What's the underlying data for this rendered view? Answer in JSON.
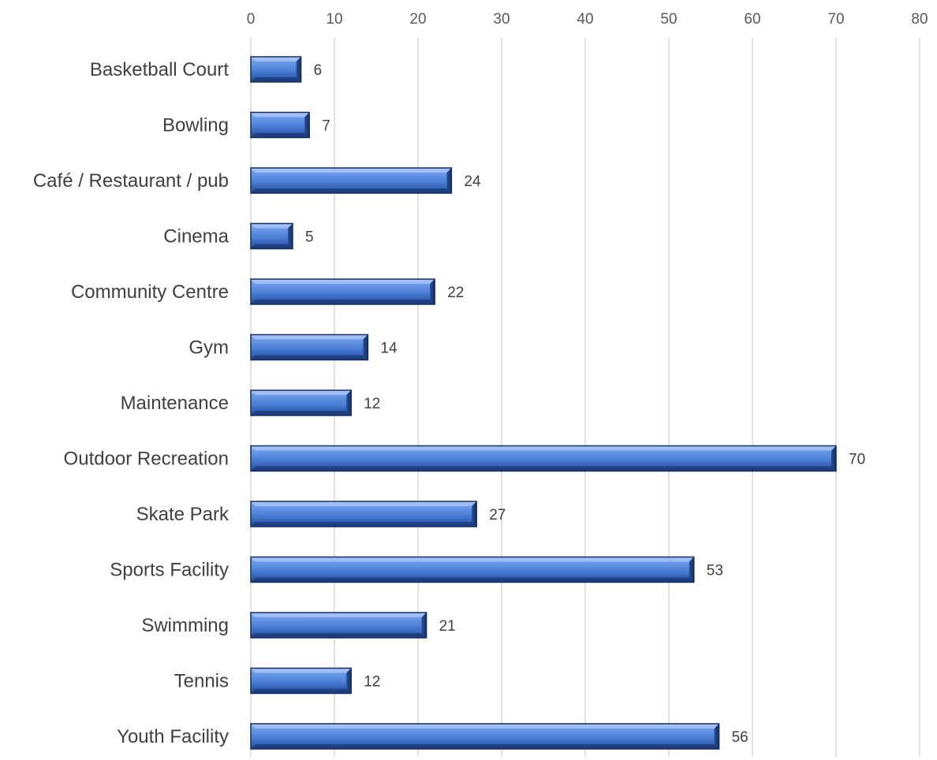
{
  "chart_data": {
    "type": "bar",
    "orientation": "horizontal",
    "title": "",
    "xlabel": "",
    "ylabel": "",
    "xlim": [
      0,
      80
    ],
    "x_ticks": [
      0,
      10,
      20,
      30,
      40,
      50,
      60,
      70,
      80
    ],
    "x_axis_position": "top",
    "grid": true,
    "legend": "none",
    "categories": [
      "Basketball Court",
      "Bowling",
      "Café / Restaurant / pub",
      "Cinema",
      "Community Centre",
      "Gym",
      "Maintenance",
      "Outdoor Recreation",
      "Skate Park",
      "Sports Facility",
      "Swimming",
      "Tennis",
      "Youth Facility"
    ],
    "values": [
      6,
      7,
      24,
      5,
      22,
      14,
      12,
      70,
      27,
      53,
      21,
      12,
      56
    ],
    "colors": {
      "bar_light": "#8fb4f5",
      "bar_main": "#4a7fd6",
      "bar_dark": "#1f3f80",
      "bar_edge": "#15305f",
      "grid": "#d9d9d9"
    }
  }
}
